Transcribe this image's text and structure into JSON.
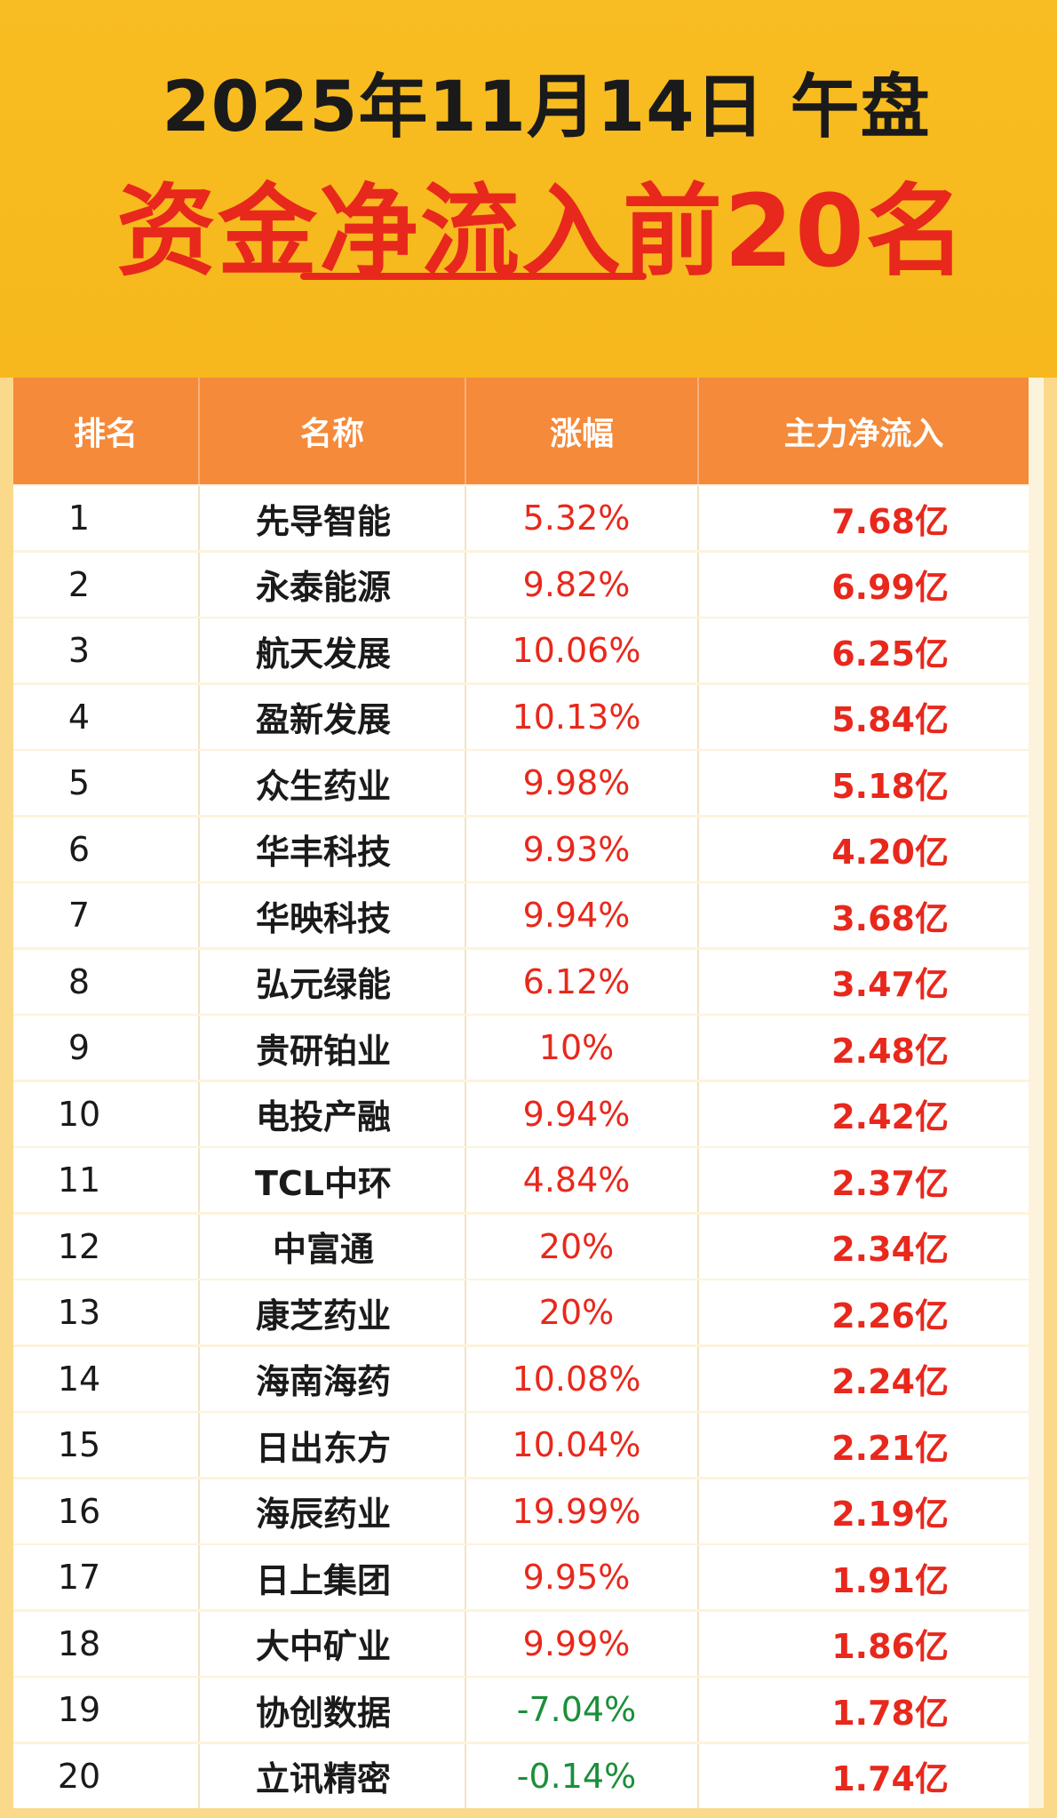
{
  "header": {
    "date": "2025年11月14日 午盘",
    "title": "资金净流入前20名"
  },
  "table": {
    "columns": [
      "排名",
      "名称",
      "涨幅",
      "主力净流入"
    ],
    "rows": [
      {
        "rank": "1",
        "name": "先导智能",
        "change": "5.32%",
        "net_inflow": "7.68亿",
        "negative": false
      },
      {
        "rank": "2",
        "name": "永泰能源",
        "change": "9.82%",
        "net_inflow": "6.99亿",
        "negative": false
      },
      {
        "rank": "3",
        "name": "航天发展",
        "change": "10.06%",
        "net_inflow": "6.25亿",
        "negative": false
      },
      {
        "rank": "4",
        "name": "盈新发展",
        "change": "10.13%",
        "net_inflow": "5.84亿",
        "negative": false
      },
      {
        "rank": "5",
        "name": "众生药业",
        "change": "9.98%",
        "net_inflow": "5.18亿",
        "negative": false
      },
      {
        "rank": "6",
        "name": "华丰科技",
        "change": "9.93%",
        "net_inflow": "4.20亿",
        "negative": false
      },
      {
        "rank": "7",
        "name": "华映科技",
        "change": "9.94%",
        "net_inflow": "3.68亿",
        "negative": false
      },
      {
        "rank": "8",
        "name": "弘元绿能",
        "change": "6.12%",
        "net_inflow": "3.47亿",
        "negative": false
      },
      {
        "rank": "9",
        "name": "贵研铂业",
        "change": "10%",
        "net_inflow": "2.48亿",
        "negative": false
      },
      {
        "rank": "10",
        "name": "电投产融",
        "change": "9.94%",
        "net_inflow": "2.42亿",
        "negative": false
      },
      {
        "rank": "11",
        "name": "TCL中环",
        "change": "4.84%",
        "net_inflow": "2.37亿",
        "negative": false
      },
      {
        "rank": "12",
        "name": "中富通",
        "change": "20%",
        "net_inflow": "2.34亿",
        "negative": false
      },
      {
        "rank": "13",
        "name": "康芝药业",
        "change": "20%",
        "net_inflow": "2.26亿",
        "negative": false
      },
      {
        "rank": "14",
        "name": "海南海药",
        "change": "10.08%",
        "net_inflow": "2.24亿",
        "negative": false
      },
      {
        "rank": "15",
        "name": "日出东方",
        "change": "10.04%",
        "net_inflow": "2.21亿",
        "negative": false
      },
      {
        "rank": "16",
        "name": "海辰药业",
        "change": "19.99%",
        "net_inflow": "2.19亿",
        "negative": false
      },
      {
        "rank": "17",
        "name": "日上集团",
        "change": "9.95%",
        "net_inflow": "1.91亿",
        "negative": false
      },
      {
        "rank": "18",
        "name": "大中矿业",
        "change": "9.99%",
        "net_inflow": "1.86亿",
        "negative": false
      },
      {
        "rank": "19",
        "name": "协创数据",
        "change": "-7.04%",
        "net_inflow": "1.78亿",
        "negative": true
      },
      {
        "rank": "20",
        "name": "立讯精密",
        "change": "-0.14%",
        "net_inflow": "1.74亿",
        "negative": true
      }
    ]
  },
  "colors": {
    "header_bg": "#f8bd22",
    "title_red": "#e8281c",
    "table_header_bg": "#f48a3a",
    "positive": "#e8281c",
    "negative": "#1b8f3a"
  }
}
